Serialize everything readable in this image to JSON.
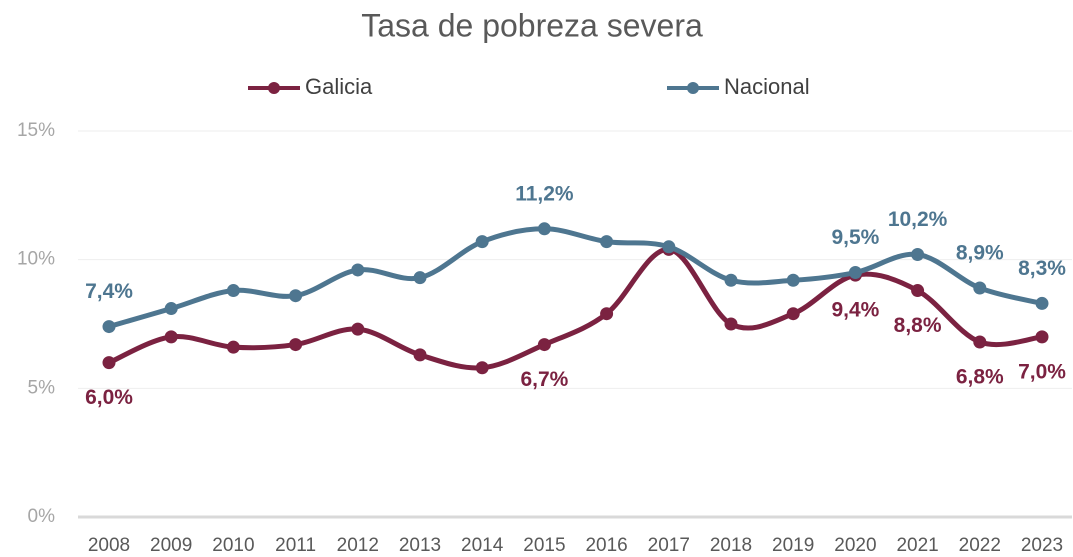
{
  "chart_data": {
    "type": "line",
    "title": "Tasa de pobreza severa",
    "categories": [
      "2008",
      "2009",
      "2010",
      "2011",
      "2012",
      "2013",
      "2014",
      "2015",
      "2016",
      "2017",
      "2018",
      "2019",
      "2020",
      "2021",
      "2022",
      "2023"
    ],
    "series": [
      {
        "name": "Galicia",
        "color": "#7b2241",
        "values": [
          6.0,
          7.0,
          6.6,
          6.7,
          7.3,
          6.3,
          5.8,
          6.7,
          7.9,
          10.4,
          7.5,
          7.9,
          9.4,
          8.8,
          6.8,
          7.0
        ],
        "value_labels": [
          "6,0%",
          null,
          null,
          null,
          null,
          null,
          null,
          "6,7%",
          null,
          null,
          null,
          null,
          "9,4%",
          "8,8%",
          "6,8%",
          "7,0%"
        ]
      },
      {
        "name": "Nacional",
        "color": "#4e7690",
        "values": [
          7.4,
          8.1,
          8.8,
          8.6,
          9.6,
          9.3,
          10.7,
          11.2,
          10.7,
          10.5,
          9.2,
          9.2,
          9.5,
          10.2,
          8.9,
          8.3
        ],
        "value_labels": [
          "7,4%",
          null,
          null,
          null,
          null,
          null,
          null,
          "11,2%",
          null,
          null,
          null,
          null,
          "9,5%",
          "10,2%",
          "8,9%",
          "8,3%"
        ]
      }
    ],
    "ylim": [
      0,
      15
    ],
    "yticks": [
      {
        "value": 0,
        "label": "0%"
      },
      {
        "value": 5,
        "label": "5%"
      },
      {
        "value": 10,
        "label": "10%"
      },
      {
        "value": 15,
        "label": "15%"
      }
    ],
    "grid": true
  }
}
